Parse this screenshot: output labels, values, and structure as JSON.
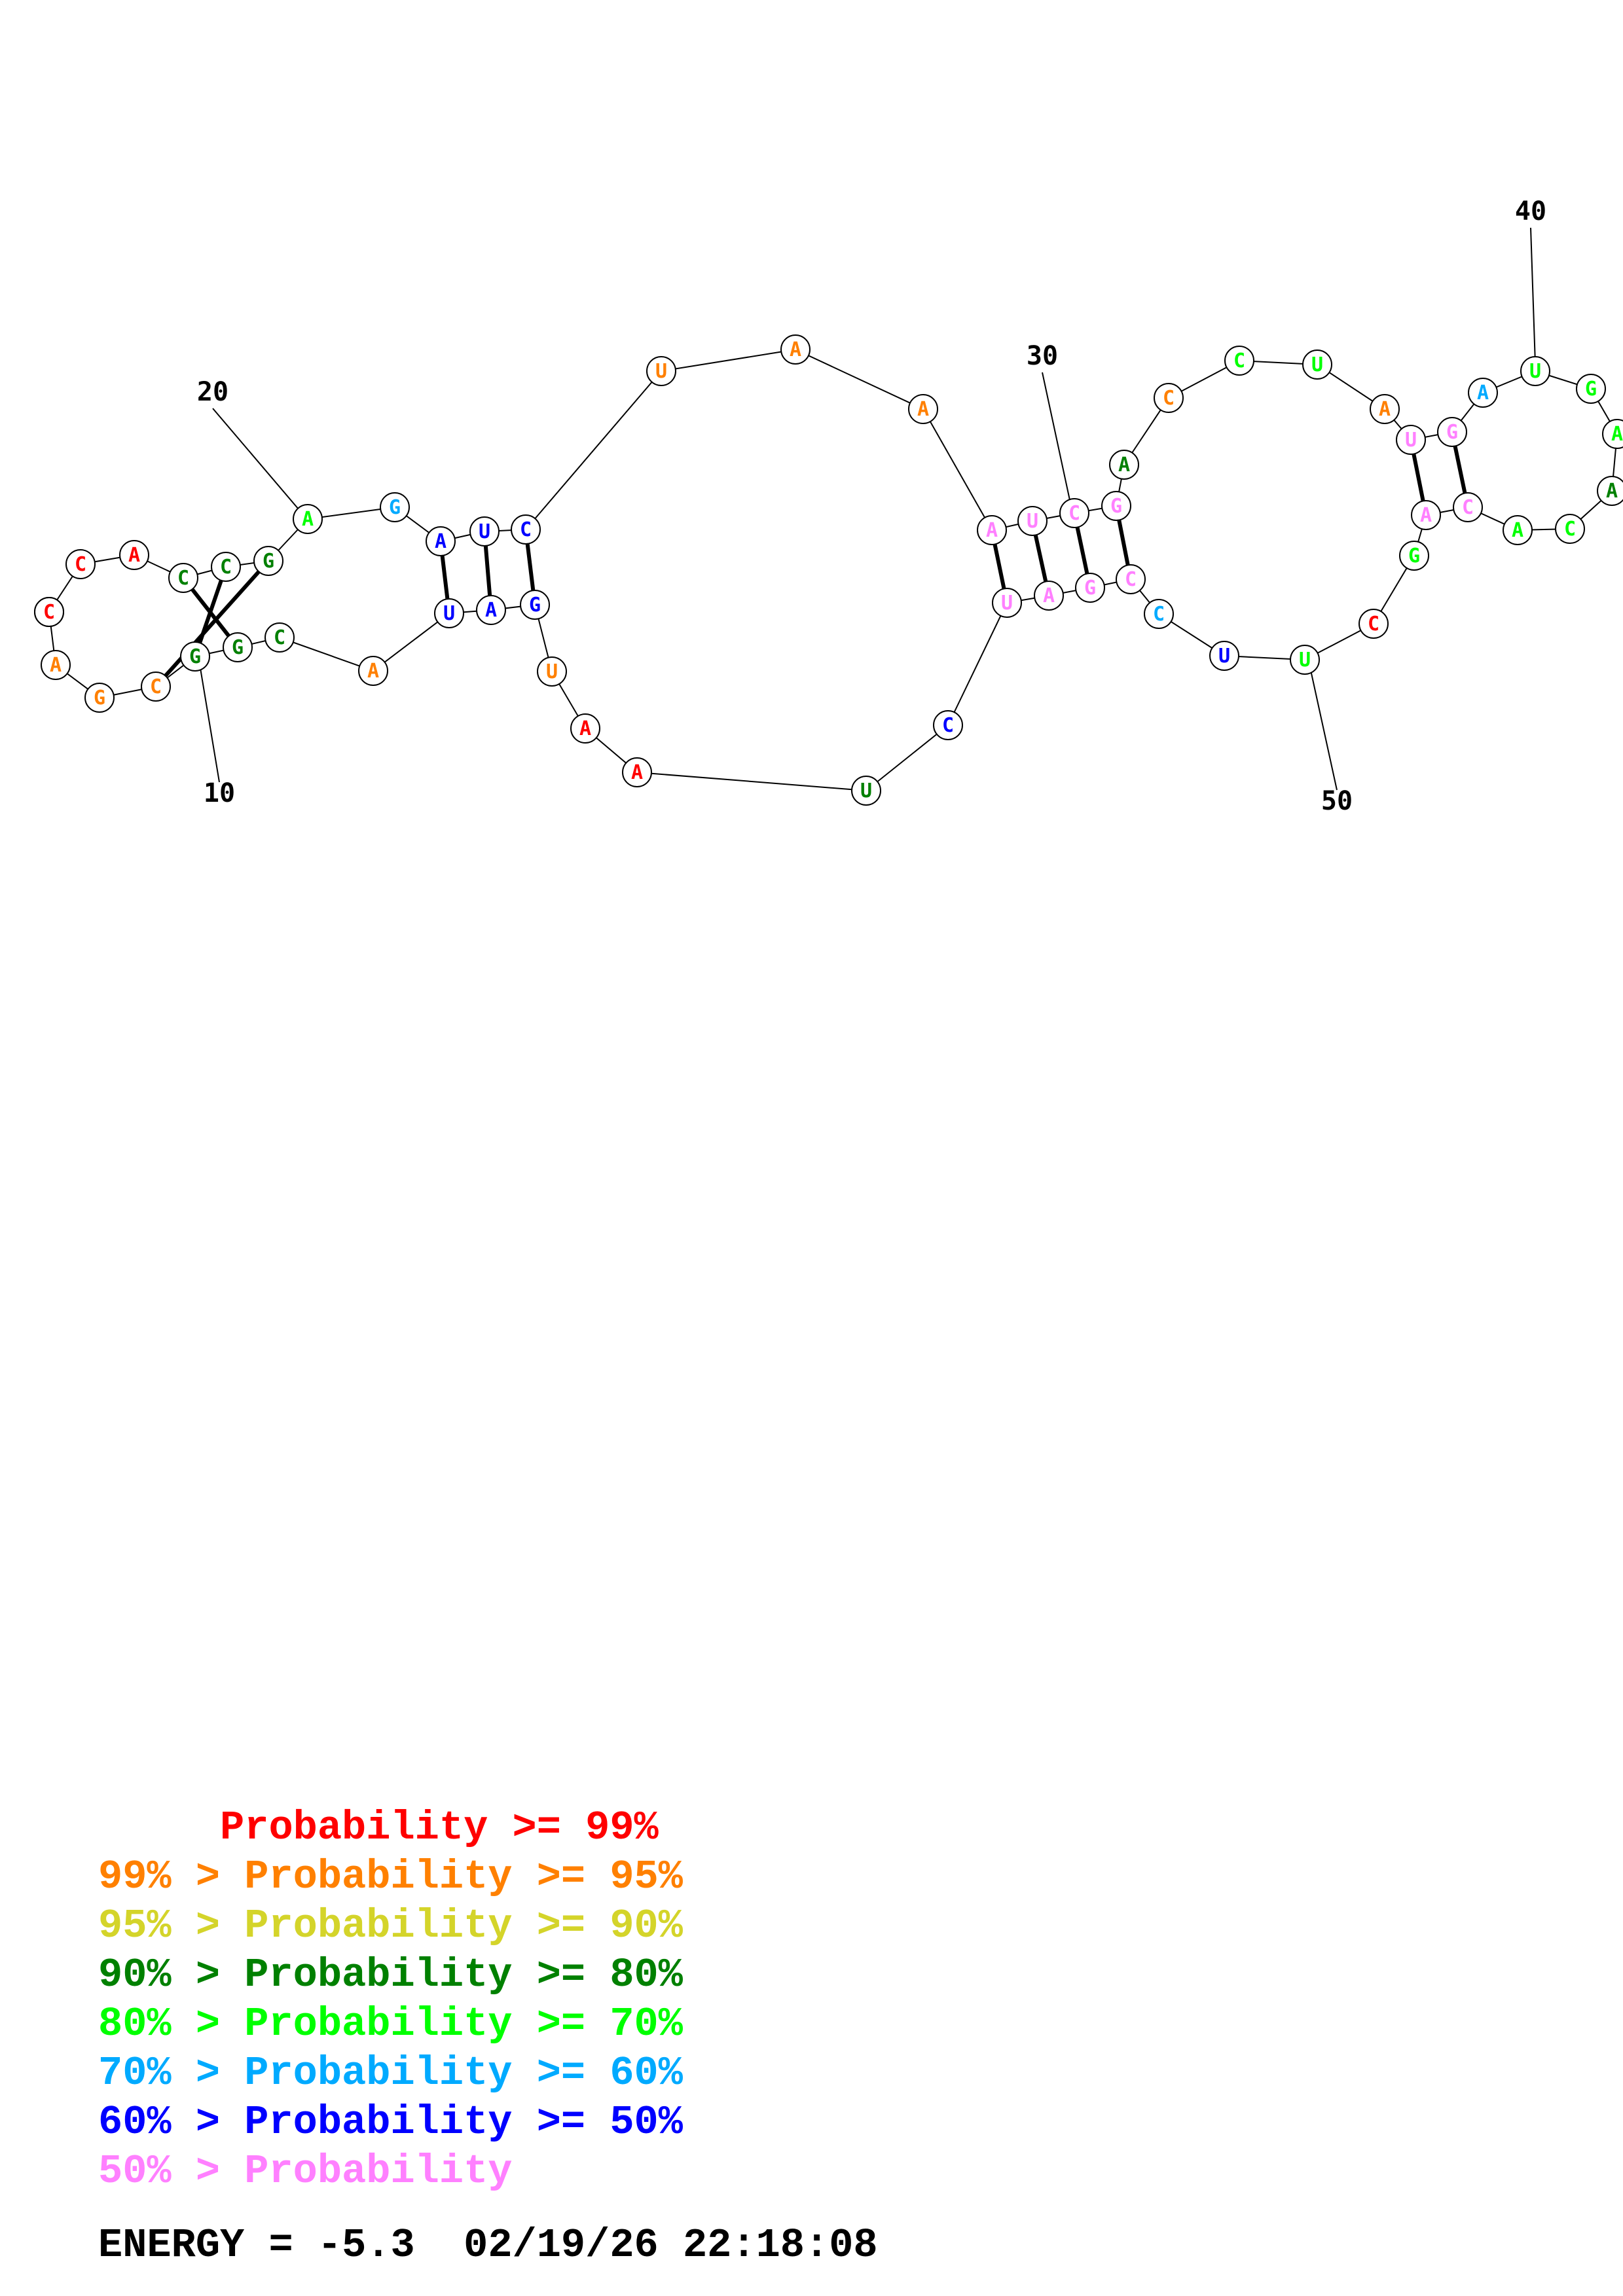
{
  "diagram": {
    "nucleotides": [
      {
        "base": "C",
        "color": "#ff0000"
      },
      {
        "base": "C",
        "color": "#ff0000"
      },
      {
        "base": "A",
        "color": "#ff0000"
      },
      {
        "base": "C",
        "color": "#008000"
      },
      {
        "base": "C",
        "color": "#008000"
      },
      {
        "base": "G",
        "color": "#008000"
      },
      {
        "base": "A",
        "color": "#00ff00"
      },
      {
        "base": "G",
        "color": "#00aaff"
      },
      {
        "base": "A",
        "color": "#0000ff"
      },
      {
        "base": "U",
        "color": "#0000ff"
      },
      {
        "base": "C",
        "color": "#0000ff"
      },
      {
        "base": "U",
        "color": "#ff8000"
      },
      {
        "base": "A",
        "color": "#ff8000"
      },
      {
        "base": "A",
        "color": "#ff8000"
      },
      {
        "base": "A",
        "color": "#ff80ff"
      },
      {
        "base": "U",
        "color": "#ff80ff"
      },
      {
        "base": "C",
        "color": "#ff80ff"
      },
      {
        "base": "G",
        "color": "#ff80ff"
      },
      {
        "base": "A",
        "color": "#008000"
      },
      {
        "base": "C",
        "color": "#ff8000"
      },
      {
        "base": "C",
        "color": "#00ff00"
      },
      {
        "base": "U",
        "color": "#00ff00"
      },
      {
        "base": "A",
        "color": "#ff8000"
      },
      {
        "base": "U",
        "color": "#ff80ff"
      },
      {
        "base": "G",
        "color": "#ff80ff"
      },
      {
        "base": "A",
        "color": "#00aaff"
      },
      {
        "base": "U",
        "color": "#00ff00"
      },
      {
        "base": "G",
        "color": "#00ff00"
      },
      {
        "base": "A",
        "color": "#00ff00"
      },
      {
        "base": "A",
        "color": "#008000"
      },
      {
        "base": "C",
        "color": "#00ff00"
      },
      {
        "base": "A",
        "color": "#00ff00"
      },
      {
        "base": "C",
        "color": "#ff80ff"
      },
      {
        "base": "A",
        "color": "#ff80ff"
      },
      {
        "base": "G",
        "color": "#00ff00"
      },
      {
        "base": "C",
        "color": "#ff0000"
      },
      {
        "base": "U",
        "color": "#00ff00"
      },
      {
        "base": "U",
        "color": "#0000ff"
      },
      {
        "base": "C",
        "color": "#00aaff"
      },
      {
        "base": "C",
        "color": "#ff80ff"
      },
      {
        "base": "G",
        "color": "#ff80ff"
      },
      {
        "base": "A",
        "color": "#ff80ff"
      },
      {
        "base": "U",
        "color": "#ff80ff"
      },
      {
        "base": "C",
        "color": "#0000ff"
      },
      {
        "base": "U",
        "color": "#008000"
      },
      {
        "base": "A",
        "color": "#ff0000"
      },
      {
        "base": "A",
        "color": "#ff0000"
      },
      {
        "base": "U",
        "color": "#ff8000"
      },
      {
        "base": "G",
        "color": "#0000ff"
      },
      {
        "base": "A",
        "color": "#0000ff"
      },
      {
        "base": "U",
        "color": "#0000ff"
      },
      {
        "base": "A",
        "color": "#ff8000"
      },
      {
        "base": "C",
        "color": "#008000"
      },
      {
        "base": "G",
        "color": "#008000"
      },
      {
        "base": "G",
        "color": "#008000"
      },
      {
        "base": "C",
        "color": "#ff8000"
      },
      {
        "base": "G",
        "color": "#ff8000"
      },
      {
        "base": "A",
        "color": "#ff8000"
      },
      {
        "base": "C",
        "color": "#ff0000"
      }
    ],
    "position_labels": [
      "10",
      "20",
      "30",
      "40",
      "50"
    ]
  },
  "legend": [
    {
      "text": "     Probability >= 99%",
      "color": "#ff0000"
    },
    {
      "text": "99% > Probability >= 95%",
      "color": "#ff8000"
    },
    {
      "text": "95% > Probability >= 90%",
      "color": "#d4d42a"
    },
    {
      "text": "90% > Probability >= 80%",
      "color": "#008000"
    },
    {
      "text": "80% > Probability >= 70%",
      "color": "#00ff00"
    },
    {
      "text": "70% > Probability >= 60%",
      "color": "#00aaff"
    },
    {
      "text": "60% > Probability >= 50%",
      "color": "#0000ff"
    },
    {
      "text": "50% > Probability",
      "color": "#ff80ff"
    }
  ],
  "footer": {
    "energy_label": "ENERGY = ",
    "energy_value": "-5.3",
    "timestamp": "02/19/26 22:18:08"
  }
}
